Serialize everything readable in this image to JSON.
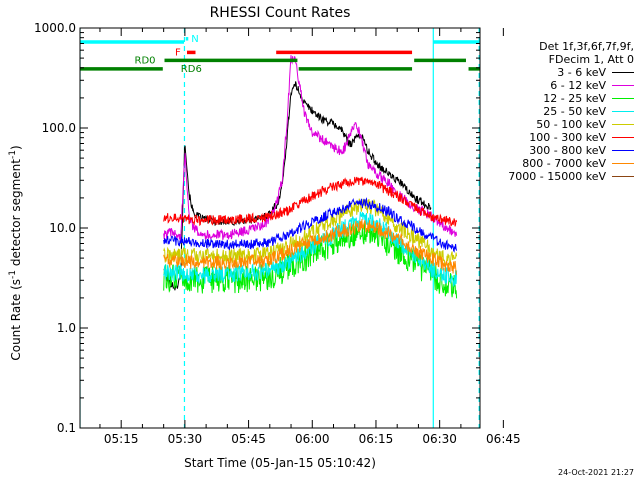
{
  "chart_data": {
    "type": "line",
    "title": "RHESSI Count Rates",
    "xlabel": "Start Time (05-Jan-15 05:10:42)",
    "ylabel_parts": [
      "Count Rate (s",
      "-1",
      " detector segment",
      "-1",
      ")"
    ],
    "yscale": "log",
    "ylim": [
      0.1,
      1000.0
    ],
    "yticks": [
      "0.1",
      "1.0",
      "10.0",
      "100.0",
      "1000.0"
    ],
    "xlim_minutes": [
      5.3,
      99.5
    ],
    "xticks": [
      {
        "label": "05:15",
        "m": 15
      },
      {
        "label": "05:30",
        "m": 30
      },
      {
        "label": "05:45",
        "m": 45
      },
      {
        "label": "06:00",
        "m": 60
      },
      {
        "label": "06:15",
        "m": 75
      },
      {
        "label": "06:30",
        "m": 90
      },
      {
        "label": "06:45",
        "m": 105
      }
    ],
    "legend_header": [
      "Det 1f,3f,6f,7f,9f,",
      "FDecim 1, Att 0"
    ],
    "series": [
      {
        "name": "3 - 6 keV",
        "color": "#000000",
        "points": [
          [
            25,
            4
          ],
          [
            26,
            3
          ],
          [
            27,
            2.7
          ],
          [
            28,
            2.5
          ],
          [
            29,
            3.3
          ],
          [
            30,
            75
          ],
          [
            31,
            22
          ],
          [
            32,
            14
          ],
          [
            34,
            12.5
          ],
          [
            36,
            12
          ],
          [
            38,
            11.5
          ],
          [
            40,
            11.5
          ],
          [
            42,
            11.5
          ],
          [
            45,
            12
          ],
          [
            48,
            12.5
          ],
          [
            50,
            14
          ],
          [
            52,
            18
          ],
          [
            53,
            28
          ],
          [
            54,
            75
          ],
          [
            55,
            230
          ],
          [
            56,
            270
          ],
          [
            57,
            230
          ],
          [
            58,
            180
          ],
          [
            60,
            150
          ],
          [
            62,
            125
          ],
          [
            65,
            110
          ],
          [
            67,
            95
          ],
          [
            68,
            78
          ],
          [
            69,
            70
          ],
          [
            70,
            76
          ],
          [
            71,
            88
          ],
          [
            72,
            78
          ],
          [
            73,
            60
          ],
          [
            75,
            45
          ],
          [
            77,
            38
          ],
          [
            79,
            32
          ],
          [
            81,
            28
          ],
          [
            83,
            22
          ],
          [
            85,
            19
          ],
          [
            88,
            16
          ]
        ]
      },
      {
        "name": "6 - 12 keV",
        "color": "#dd00dd",
        "points": [
          [
            25,
            8.5
          ],
          [
            27,
            9
          ],
          [
            29,
            8
          ],
          [
            30,
            55
          ],
          [
            31,
            14
          ],
          [
            32,
            10
          ],
          [
            35,
            8.5
          ],
          [
            40,
            8.5
          ],
          [
            45,
            9.5
          ],
          [
            48,
            10.5
          ],
          [
            50,
            12
          ],
          [
            52,
            20
          ],
          [
            53,
            32
          ],
          [
            54,
            110
          ],
          [
            55,
            480
          ],
          [
            56,
            470
          ],
          [
            57,
            280
          ],
          [
            58,
            150
          ],
          [
            59,
            110
          ],
          [
            60,
            92
          ],
          [
            62,
            78
          ],
          [
            64,
            70
          ],
          [
            66,
            60
          ],
          [
            67,
            58
          ],
          [
            68,
            68
          ],
          [
            69,
            90
          ],
          [
            70,
            108
          ],
          [
            71,
            92
          ],
          [
            72,
            65
          ],
          [
            73,
            45
          ],
          [
            75,
            35
          ],
          [
            78,
            28
          ],
          [
            80,
            22
          ],
          [
            82,
            19
          ],
          [
            84,
            16
          ],
          [
            87,
            14
          ],
          [
            89,
            12
          ],
          [
            92,
            10
          ],
          [
            94,
            8.5
          ]
        ]
      },
      {
        "name": "12 - 25 keV",
        "color": "#00ee00",
        "points": [
          [
            25,
            3.2
          ],
          [
            28,
            3.1
          ],
          [
            30,
            3
          ],
          [
            35,
            3
          ],
          [
            40,
            3
          ],
          [
            45,
            3.1
          ],
          [
            50,
            3.3
          ],
          [
            55,
            4.2
          ],
          [
            60,
            5.5
          ],
          [
            65,
            7
          ],
          [
            70,
            9
          ],
          [
            72,
            9.5
          ],
          [
            75,
            8.5
          ],
          [
            78,
            7
          ],
          [
            80,
            6
          ],
          [
            84,
            4.5
          ],
          [
            88,
            3.5
          ],
          [
            90,
            3
          ],
          [
            92,
            2.7
          ],
          [
            94,
            2.4
          ]
        ]
      },
      {
        "name": "25 - 50 keV",
        "color": "#00eeee",
        "points": [
          [
            25,
            3.6
          ],
          [
            30,
            3.5
          ],
          [
            35,
            3.4
          ],
          [
            40,
            3.5
          ],
          [
            45,
            3.6
          ],
          [
            50,
            3.8
          ],
          [
            55,
            4.8
          ],
          [
            60,
            6.5
          ],
          [
            65,
            8.5
          ],
          [
            70,
            11.5
          ],
          [
            72,
            12
          ],
          [
            75,
            11
          ],
          [
            78,
            9
          ],
          [
            80,
            7.5
          ],
          [
            84,
            5.5
          ],
          [
            88,
            4
          ],
          [
            90,
            3.5
          ],
          [
            92,
            3.3
          ],
          [
            94,
            3.1
          ]
        ]
      },
      {
        "name": "50 - 100 keV",
        "color": "#cccc00",
        "points": [
          [
            25,
            5.3
          ],
          [
            30,
            5.3
          ],
          [
            35,
            5.2
          ],
          [
            40,
            5.2
          ],
          [
            45,
            5.3
          ],
          [
            50,
            5.6
          ],
          [
            55,
            6.8
          ],
          [
            60,
            9
          ],
          [
            65,
            12
          ],
          [
            70,
            16
          ],
          [
            72,
            17
          ],
          [
            75,
            15.5
          ],
          [
            78,
            12.5
          ],
          [
            80,
            10.5
          ],
          [
            84,
            8
          ],
          [
            88,
            6
          ],
          [
            90,
            5.3
          ],
          [
            92,
            5
          ],
          [
            94,
            4.8
          ]
        ]
      },
      {
        "name": "100 - 300 keV",
        "color": "#ff0000",
        "points": [
          [
            25,
            12.5
          ],
          [
            28,
            13
          ],
          [
            30,
            12.3
          ],
          [
            32,
            12
          ],
          [
            35,
            12
          ],
          [
            40,
            12
          ],
          [
            45,
            12.5
          ],
          [
            50,
            13
          ],
          [
            55,
            15.5
          ],
          [
            60,
            21
          ],
          [
            65,
            26
          ],
          [
            70,
            30
          ],
          [
            73,
            29
          ],
          [
            76,
            26
          ],
          [
            80,
            21
          ],
          [
            84,
            16
          ],
          [
            88,
            13
          ],
          [
            90,
            12.5
          ],
          [
            92,
            11.8
          ],
          [
            94,
            11.5
          ]
        ]
      },
      {
        "name": "300 - 800 keV",
        "color": "#0000ff",
        "points": [
          [
            25,
            7.5
          ],
          [
            30,
            7.3
          ],
          [
            35,
            7
          ],
          [
            40,
            6.8
          ],
          [
            45,
            6.9
          ],
          [
            50,
            7.2
          ],
          [
            55,
            9
          ],
          [
            60,
            11.5
          ],
          [
            65,
            14.5
          ],
          [
            70,
            17.5
          ],
          [
            72,
            17.8
          ],
          [
            75,
            16.5
          ],
          [
            78,
            14.5
          ],
          [
            80,
            12.5
          ],
          [
            84,
            10
          ],
          [
            88,
            8
          ],
          [
            90,
            7.2
          ],
          [
            92,
            6.6
          ],
          [
            94,
            6.3
          ]
        ]
      },
      {
        "name": "800 - 7000 keV",
        "color": "#ff8800",
        "points": [
          [
            25,
            4.7
          ],
          [
            30,
            4.6
          ],
          [
            35,
            4.5
          ],
          [
            40,
            4.5
          ],
          [
            45,
            4.6
          ],
          [
            50,
            4.8
          ],
          [
            55,
            6
          ],
          [
            60,
            7.5
          ],
          [
            65,
            8.8
          ],
          [
            70,
            10.3
          ],
          [
            72,
            10.5
          ],
          [
            75,
            10
          ],
          [
            78,
            8.8
          ],
          [
            80,
            7.8
          ],
          [
            84,
            6.2
          ],
          [
            88,
            5
          ],
          [
            90,
            4.5
          ],
          [
            92,
            4.2
          ],
          [
            94,
            4
          ]
        ]
      },
      {
        "name": "7000 - 15000 keV",
        "color": "#8b4513",
        "points": []
      }
    ],
    "attenuator_bars": [
      {
        "label": "",
        "color": "#00ffff",
        "start": 5.3,
        "end": 29.8,
        "level": 725
      },
      {
        "label": "N",
        "color": "#00ffff",
        "start": 30.2,
        "end": 30.8,
        "level": 780
      },
      {
        "label": "",
        "color": "#00ffff",
        "start": 88.5,
        "end": 99.5,
        "level": 725
      },
      {
        "label": "F",
        "color": "#ff0000",
        "start": 30.5,
        "end": 32.5,
        "level": 570
      },
      {
        "label": "",
        "color": "#ff0000",
        "start": 51.5,
        "end": 83.5,
        "level": 570
      },
      {
        "label": "RD0",
        "color": "#008000",
        "start": 25.2,
        "end": 56.5,
        "level": 475
      },
      {
        "label": "RD6",
        "color": "#008000",
        "start": 5.3,
        "end": 24.8,
        "level": 390
      },
      {
        "label": "",
        "color": "#008000",
        "start": 56.8,
        "end": 83.5,
        "level": 390
      },
      {
        "label": "",
        "color": "#008000",
        "start": 84,
        "end": 96.2,
        "level": 475
      },
      {
        "label": "",
        "color": "#008000",
        "start": 96.8,
        "end": 99.5,
        "level": 390
      }
    ],
    "vertical_markers": [
      {
        "m": 5.3,
        "color": "#00ffff",
        "style": "solid"
      },
      {
        "m": 29.9,
        "color": "#00ffff",
        "style": "dashed"
      },
      {
        "m": 88.5,
        "color": "#00ffff",
        "style": "solid"
      },
      {
        "m": 99.3,
        "color": "#00ffff",
        "style": "dashed"
      }
    ]
  },
  "timestamp": "24-Oct-2021 21:27"
}
